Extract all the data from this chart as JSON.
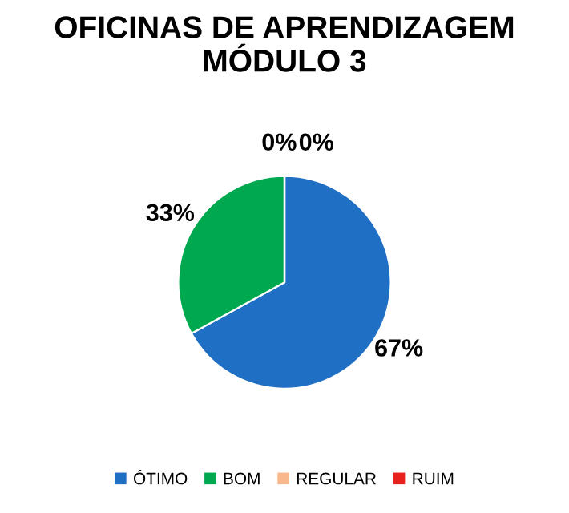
{
  "chart_data": {
    "type": "pie",
    "title": "OFICINAS DE APRENDIZAGEM\nMÓDULO 3",
    "categories": [
      "ÓTIMO",
      "BOM",
      "REGULAR",
      "RUIM"
    ],
    "values": [
      67,
      33,
      0,
      0
    ],
    "colors": [
      "#1f6fc4",
      "#00a84f",
      "#f8b88b",
      "#e8211d"
    ],
    "value_labels": [
      "67%",
      "33%",
      "0%",
      "0%"
    ],
    "legend": "bottom"
  }
}
